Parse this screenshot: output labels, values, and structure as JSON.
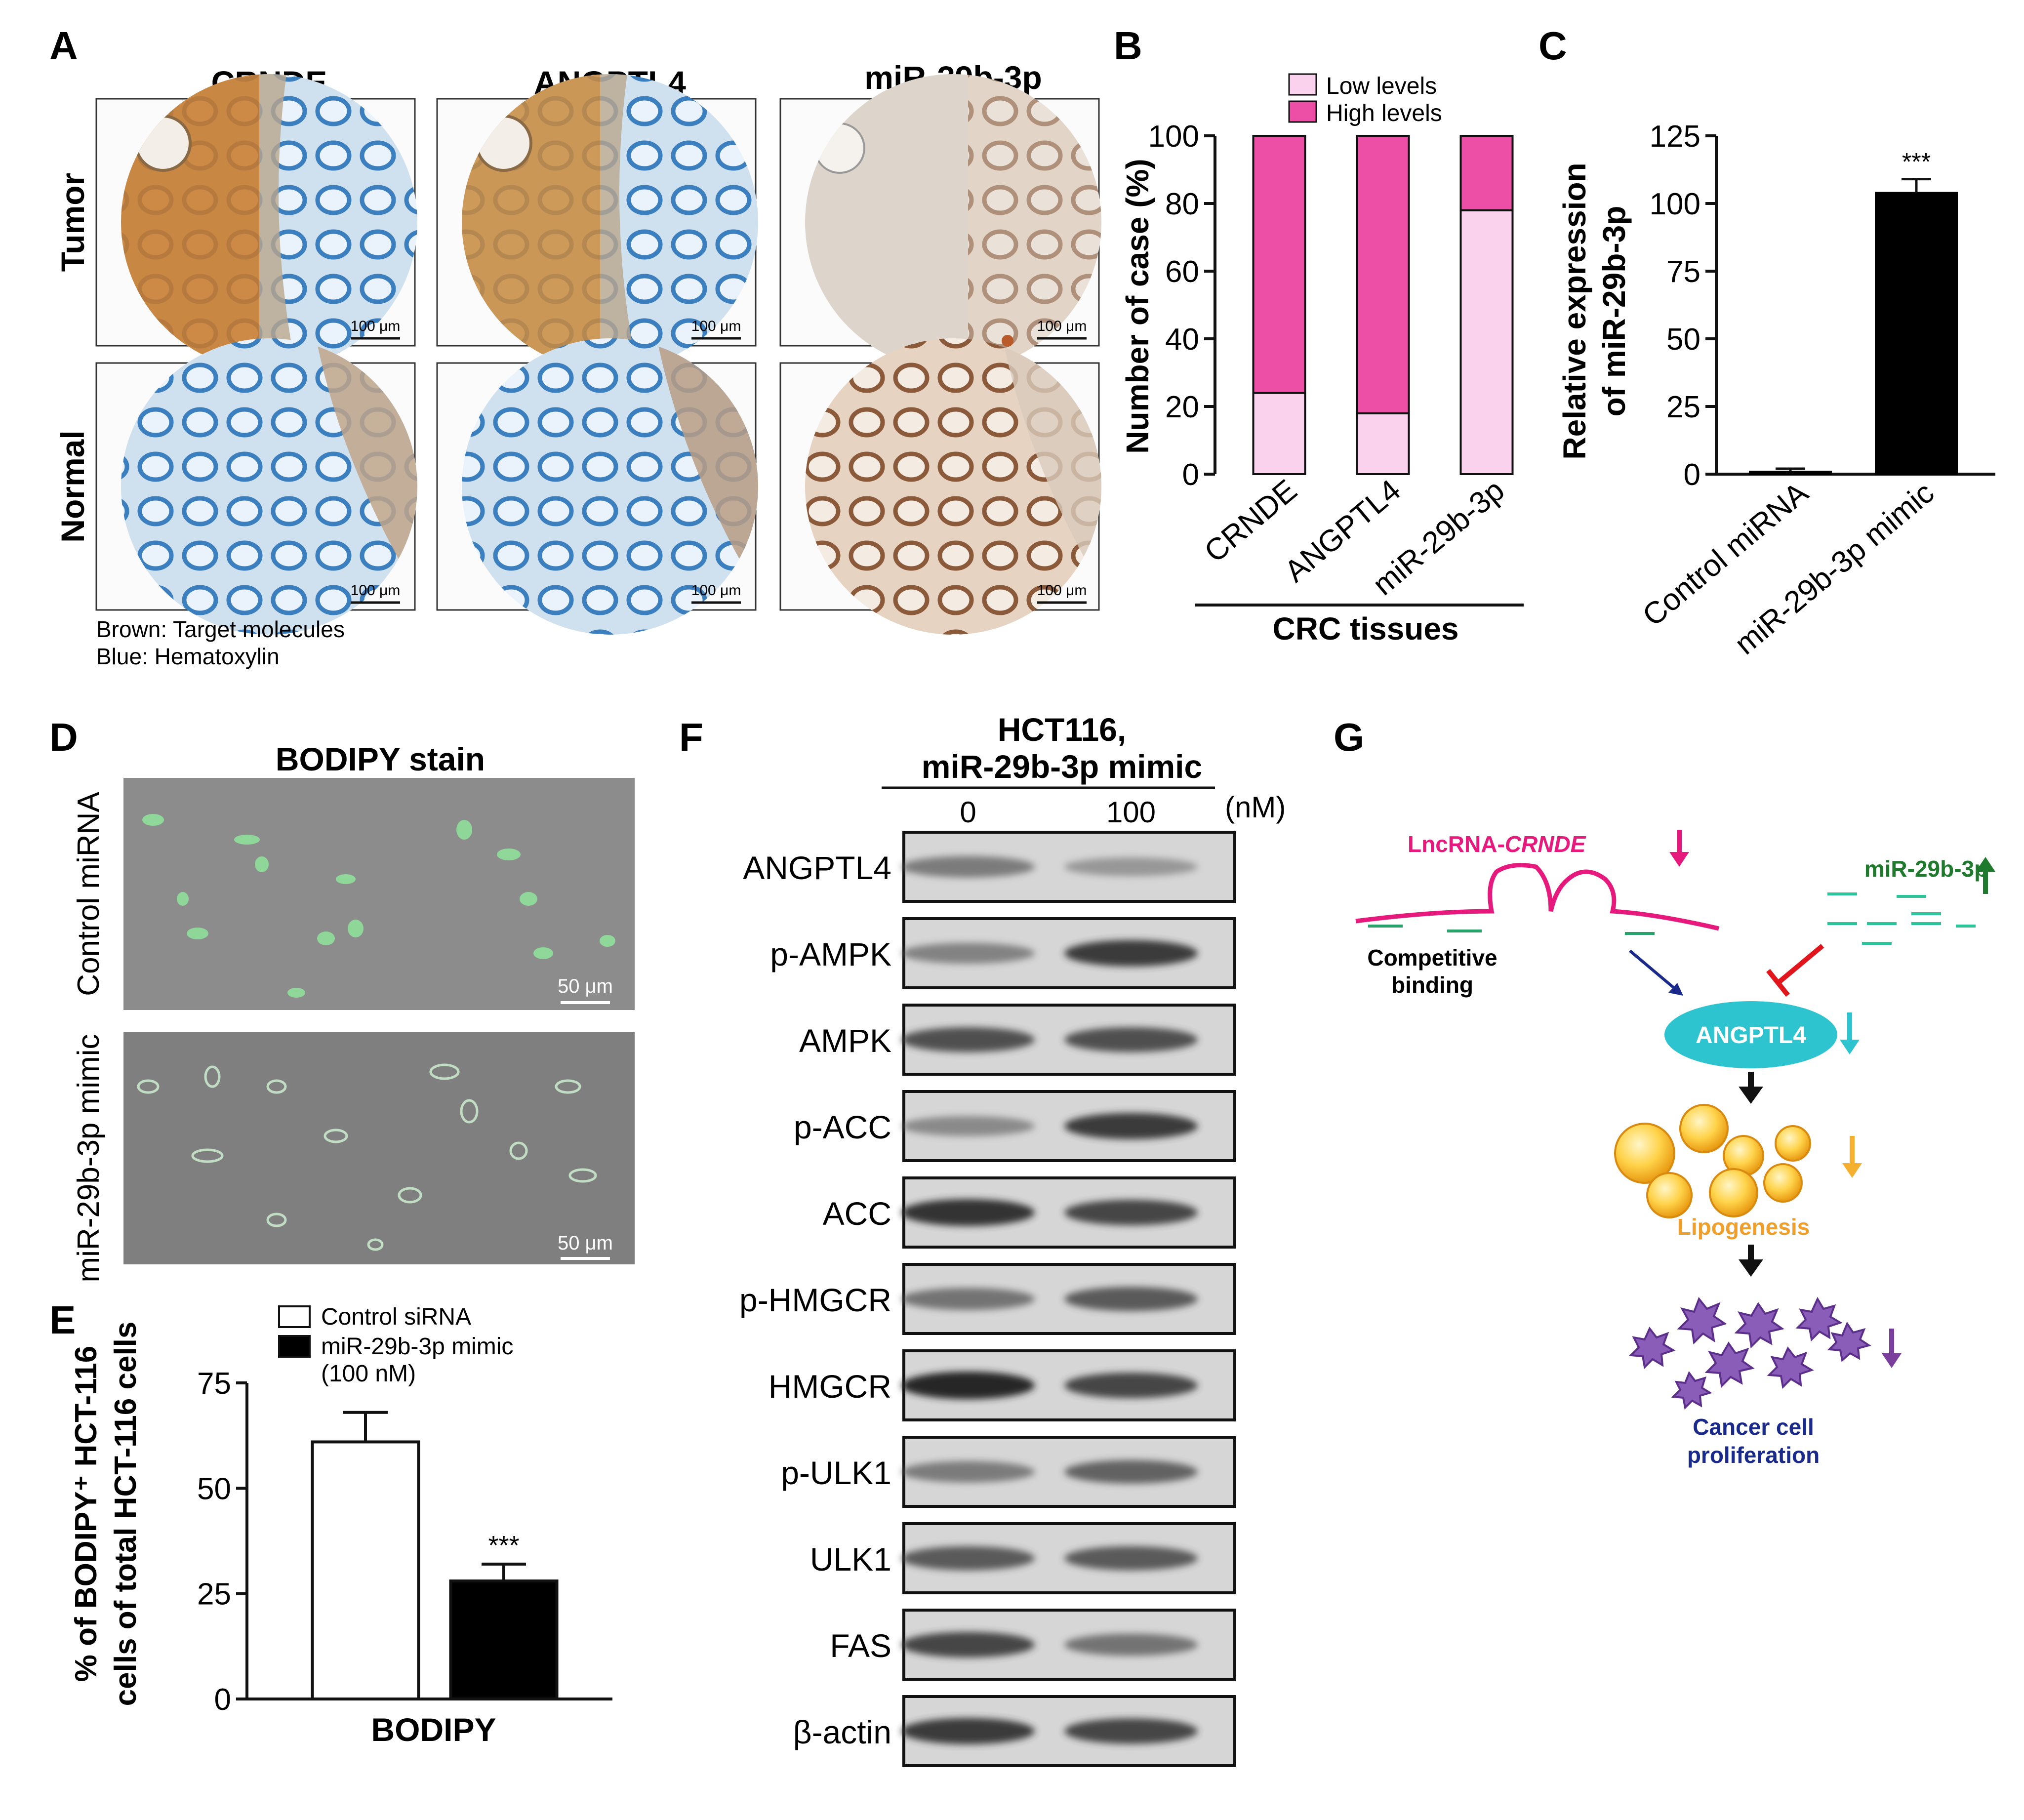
{
  "panelA": {
    "letter": "A",
    "columns": [
      "CRNDE",
      "ANGPTL4",
      "miR-29b-3p"
    ],
    "rows": [
      "Tumor",
      "Normal"
    ],
    "scale_bar": "100 μm",
    "legend": [
      "Brown: Target molecules",
      "Blue: Hematoxylin"
    ]
  },
  "panelB": {
    "letter": "B",
    "ylabel": "Number of case (%)",
    "group_label": "CRC tissues",
    "legend": [
      "Low levels",
      "High levels"
    ],
    "colors": {
      "low": "#fbd2ee",
      "high": "#ee4fa6"
    }
  },
  "panelC": {
    "letter": "C",
    "ylabel_lines": [
      "Relative expression",
      "of miR-29b-3p"
    ],
    "significance": "***"
  },
  "panelD": {
    "letter": "D",
    "title": "BODIPY stain",
    "rows": [
      "Control miRNA",
      "miR-29b-3p mimic"
    ],
    "scale_bar": "50 μm"
  },
  "panelE": {
    "letter": "E",
    "legend": [
      "Control siRNA",
      "miR-29b-3p mimic",
      "(100 nM)"
    ],
    "ylabel_lines": [
      "% of BODIPY⁺ HCT-116",
      "cells of total HCT-116 cells"
    ],
    "xlabel": "BODIPY",
    "significance": "***"
  },
  "panelF": {
    "letter": "F",
    "title_lines": [
      "HCT116,",
      "miR-29b-3p mimic"
    ],
    "doses": [
      "0",
      "100"
    ],
    "unit": "(nM)",
    "proteins": [
      "ANGPTL4",
      "p-AMPK",
      "AMPK",
      "p-ACC",
      "ACC",
      "p-HMGCR",
      "HMGCR",
      "p-ULK1",
      "ULK1",
      "FAS",
      "β-actin"
    ],
    "band_intensity": [
      [
        0.55,
        0.35
      ],
      [
        0.5,
        0.9
      ],
      [
        0.8,
        0.8
      ],
      [
        0.45,
        0.9
      ],
      [
        0.95,
        0.85
      ],
      [
        0.6,
        0.75
      ],
      [
        1.0,
        0.85
      ],
      [
        0.55,
        0.7
      ],
      [
        0.75,
        0.75
      ],
      [
        0.85,
        0.6
      ],
      [
        0.9,
        0.85
      ]
    ]
  },
  "panelG": {
    "letter": "G",
    "lncrna_prefix": "LncRNA-",
    "lncrna_name": "CRNDE",
    "mirna": "miR-29b-3p",
    "binding_lines": [
      "Competitive",
      "binding"
    ],
    "target": "ANGPTL4",
    "lipogenesis": "Lipogenesis",
    "proliferation_lines": [
      "Cancer cell",
      "proliferation"
    ],
    "colors": {
      "lnc": "#e6197d",
      "mir": "#1f7a2e",
      "target": "#2ec4cf",
      "lipo": "#f0a02a",
      "cell": "#7a3f9d",
      "prolif": "#1a2a8a"
    }
  },
  "chart_data": [
    {
      "type": "bar",
      "stacked": true,
      "categories": [
        "CRNDE",
        "ANGPTL4",
        "miR-29b-3p"
      ],
      "series": [
        {
          "name": "Low levels",
          "values": [
            24,
            18,
            78
          ]
        },
        {
          "name": "High levels",
          "values": [
            76,
            82,
            22
          ]
        }
      ],
      "xlabel": "CRC tissues",
      "ylabel": "Number of case (%)",
      "ylim": [
        0,
        100
      ],
      "yticks": [
        0,
        20,
        40,
        60,
        80,
        100
      ]
    },
    {
      "type": "bar",
      "categories": [
        "Control miRNA",
        "miR-29b-3p mimic"
      ],
      "values": [
        1,
        104
      ],
      "errors": [
        1,
        5
      ],
      "ylabel": "Relative expression of miR-29b-3p",
      "ylim": [
        0,
        125
      ],
      "yticks": [
        0,
        25,
        50,
        75,
        100,
        125
      ],
      "annotations": [
        "",
        "***"
      ]
    },
    {
      "type": "bar",
      "categories": [
        "Control siRNA",
        "miR-29b-3p mimic (100 nM)"
      ],
      "values": [
        61,
        28
      ],
      "errors": [
        7,
        4
      ],
      "xlabel": "BODIPY",
      "ylabel": "% of BODIPY⁺ HCT-116 cells of total HCT-116 cells",
      "ylim": [
        0,
        75
      ],
      "yticks": [
        0,
        25,
        50,
        75
      ],
      "annotations": [
        "",
        "***"
      ]
    }
  ]
}
